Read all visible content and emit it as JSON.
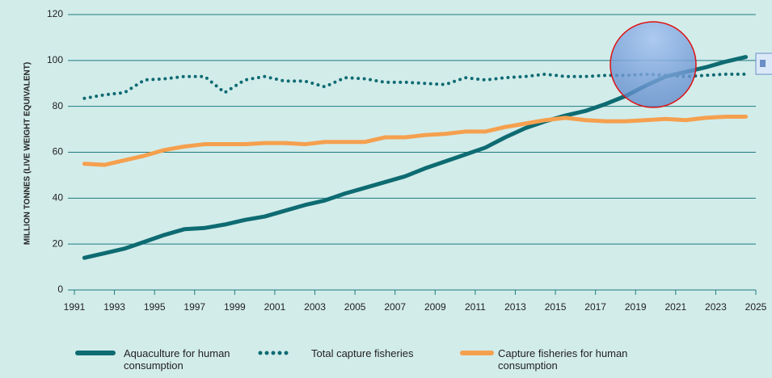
{
  "chart_data": {
    "type": "line",
    "y_label": "MILLION TONNES (LIVE WEIGHT EQUIVALENT)",
    "x": [
      1991.5,
      1992.5,
      1993.5,
      1994.5,
      1995.5,
      1996.5,
      1997.5,
      1998.5,
      1999.5,
      2000.5,
      2001.5,
      2002.5,
      2003.5,
      2004.5,
      2005.5,
      2006.5,
      2007.5,
      2008.5,
      2009.5,
      2010.5,
      2011.5,
      2012.5,
      2013.5,
      2014.5,
      2015.5,
      2016.5,
      2017.5,
      2018.5,
      2019.5,
      2020.5,
      2021.5,
      2022.5,
      2023.5,
      2024.5
    ],
    "series": [
      {
        "name": "Aquaculture for human consumption",
        "color": "#0e6b72",
        "style": "solid",
        "values": [
          14,
          16,
          18,
          21,
          24,
          26.5,
          27,
          28.5,
          30.5,
          32,
          34.5,
          37,
          39,
          42,
          44.5,
          47,
          49.5,
          53,
          56,
          59,
          62,
          66.5,
          70.5,
          73.5,
          76,
          78,
          81,
          84.5,
          89,
          93,
          95,
          97,
          99.5,
          101.5
        ]
      },
      {
        "name": "Total capture fisheries",
        "color": "#0e6b72",
        "style": "dotted",
        "values": [
          83.5,
          85,
          86,
          91.5,
          92,
          93,
          93,
          86,
          91.5,
          93,
          91,
          91,
          88.5,
          92.5,
          92,
          90.5,
          90.5,
          90,
          89.5,
          92.5,
          91.5,
          92.5,
          93,
          94,
          93,
          93,
          93.5,
          93.5,
          94,
          93.5,
          93,
          93.5,
          94,
          94
        ]
      },
      {
        "name": "Capture fisheries for human consumption",
        "color": "#f5a04e",
        "style": "solid",
        "values": [
          55,
          54.5,
          56.5,
          58.5,
          61,
          62.5,
          63.5,
          63.5,
          63.5,
          64,
          64,
          63.5,
          64.5,
          64.5,
          64.5,
          66.5,
          66.5,
          67.5,
          68,
          69,
          69,
          71,
          72.5,
          74,
          75,
          74,
          73.5,
          73.5,
          74,
          74.5,
          74,
          75,
          75.5,
          75.5
        ]
      }
    ],
    "xlim": [
      1991,
      2025
    ],
    "xticks": [
      1991,
      1993,
      1995,
      1997,
      1999,
      2001,
      2003,
      2005,
      2007,
      2009,
      2011,
      2013,
      2015,
      2017,
      2019,
      2021,
      2023,
      2025
    ],
    "ylim": [
      0,
      120
    ],
    "yticks": [
      0,
      20,
      40,
      60,
      80,
      100,
      120
    ],
    "grid": true
  }
}
